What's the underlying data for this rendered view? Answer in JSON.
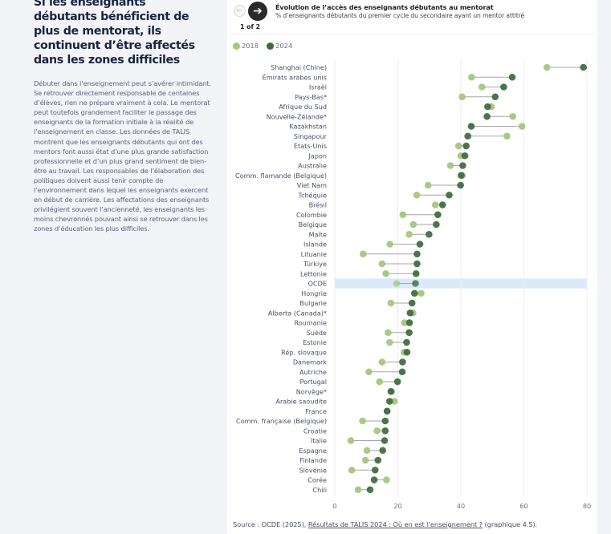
{
  "article": {
    "heading": "Si les enseignants débutants bénéficient de plus de mentorat, ils continuent d’être affectés dans les zones difficiles",
    "body": "Débuter dans l’enseignement peut s’avérer intimidant. Se retrouver directement responsable de centaines d’élèves, rien ne prépare vraiment à cela. Le mentorat peut toutefois grandement faciliter le passage des enseignants de la formation initiale à la réalité de l’enseignement en classe. Les données de TALIS montrent que les enseignants débutants qui ont des mentors font aussi état d’une plus grande satisfaction professionnelle et d’un plus grand sentiment de bien-être au travail. Les responsables de l’élaboration des politiques doivent aussi tenir compte de l’environnement dans lequel les enseignants exercent en début de carrière. Les affectations des enseignants privilégient souvent l’ancienneté, les enseignants les moins chevronnés pouvant ainsi se retrouver dans les zones d’éducation les plus difficiles."
  },
  "nav": {
    "prev_icon": "arrow-left-icon",
    "next_icon": "arrow-right-icon",
    "prev_glyph": "←",
    "next_glyph": "➔",
    "pager": "1 of 2"
  },
  "source": {
    "prefix": "Source : OCDE (2025), ",
    "link_text": "Résultats de TALIS 2024 : Où en est l’enseignement ?",
    "suffix": " (graphique 4.5)."
  },
  "colors": {
    "s2018": "#a3c77e",
    "s2024": "#3f6a3f",
    "highlight": "#dbeafb",
    "connector": "#a6a6a6",
    "grid": "#ececec"
  },
  "chart_data": {
    "type": "dumbbell",
    "title": "Évolution de l’accès des enseignants débutants au mentorat",
    "subtitle": "% d’enseignants débutants du premier cycle du secondaire ayant un mentor attitré",
    "xlabel": "",
    "ylabel": "",
    "xlim": [
      0,
      80
    ],
    "xticks": [
      0,
      20,
      40,
      60,
      80
    ],
    "grid": true,
    "legend_position": "top-left",
    "highlight_category": "OCDE",
    "categories": [
      "Shanghai (Chine)",
      "Émirats arabes unis",
      "Israël",
      "Pays-Bas*",
      "Afrique du Sud",
      "Nouvelle-Zélande*",
      "Kazakhstan",
      "Singapour",
      "États-Unis",
      "Japon",
      "Australie",
      "Comm. flamande (Belgique)",
      "Viet Nam",
      "Tchéquie",
      "Brésil",
      "Colombie",
      "Belgique",
      "Malte",
      "Islande",
      "Lituanie",
      "Türkiye",
      "Lettonie",
      "OCDE",
      "Hongrie",
      "Bulgarie",
      "Alberta (Canada)*",
      "Roumanie",
      "Suède",
      "Estonie",
      "Rép. slovaque",
      "Danemark",
      "Autriche",
      "Portugal",
      "Norvège*",
      "Arabie saoudite",
      "France",
      "Comm. française (Belgique)",
      "Croatie",
      "Italie",
      "Espagne",
      "Finlande",
      "Slovénie",
      "Corée",
      "Chili"
    ],
    "series": [
      {
        "name": "2018",
        "values": [
          67.3,
          43.4,
          46.7,
          40.4,
          49.7,
          56.5,
          59.4,
          54.6,
          39.3,
          40.0,
          36.7,
          40.5,
          29.6,
          26.0,
          31.9,
          21.6,
          24.9,
          23.6,
          17.5,
          9.0,
          15.0,
          16.2,
          19.6,
          27.4,
          17.8,
          24.8,
          22.1,
          16.9,
          17.4,
          22.0,
          15.0,
          10.8,
          14.2,
          18.0,
          18.9,
          16.6,
          8.8,
          13.4,
          5.1,
          10.2,
          9.7,
          5.4,
          16.4,
          7.4
        ]
      },
      {
        "name": "2024",
        "values": [
          78.9,
          56.3,
          53.6,
          50.9,
          48.5,
          48.3,
          43.3,
          42.2,
          41.7,
          41.3,
          40.6,
          40.1,
          39.9,
          36.3,
          34.2,
          32.7,
          32.2,
          29.9,
          27.0,
          26.1,
          26.1,
          25.8,
          25.6,
          25.3,
          24.5,
          23.9,
          23.7,
          23.6,
          22.8,
          22.9,
          21.5,
          21.4,
          19.9,
          17.8,
          17.4,
          16.6,
          16.0,
          16.0,
          15.8,
          15.2,
          13.7,
          12.8,
          12.5,
          11.2
        ]
      }
    ]
  }
}
